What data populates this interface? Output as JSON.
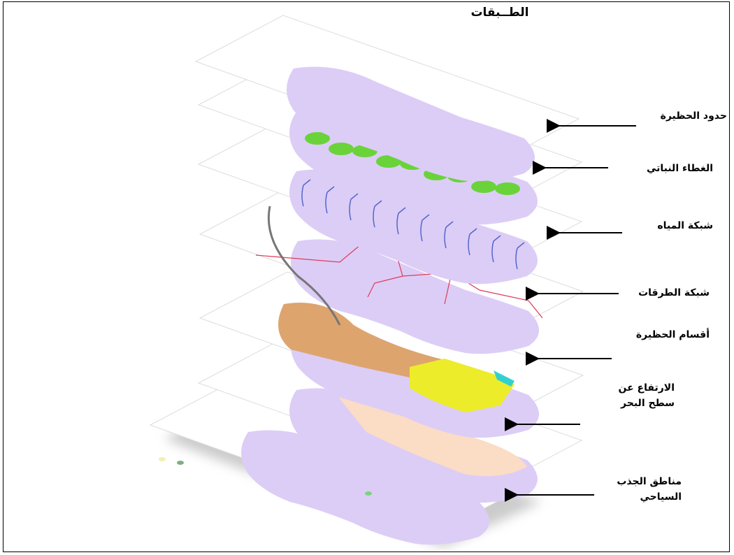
{
  "title": "الطــبقات",
  "layers": [
    {
      "label": "حدود الحظيرة"
    },
    {
      "label": "الغطاء النباتي"
    },
    {
      "label": "شبكة المياه"
    },
    {
      "label": "شبكة الطرقات"
    },
    {
      "label": "أقسام الحظيرة"
    },
    {
      "label": "الارتفاع عن سطح البحر"
    },
    {
      "label": "مناطق الجذب السياحي"
    }
  ]
}
